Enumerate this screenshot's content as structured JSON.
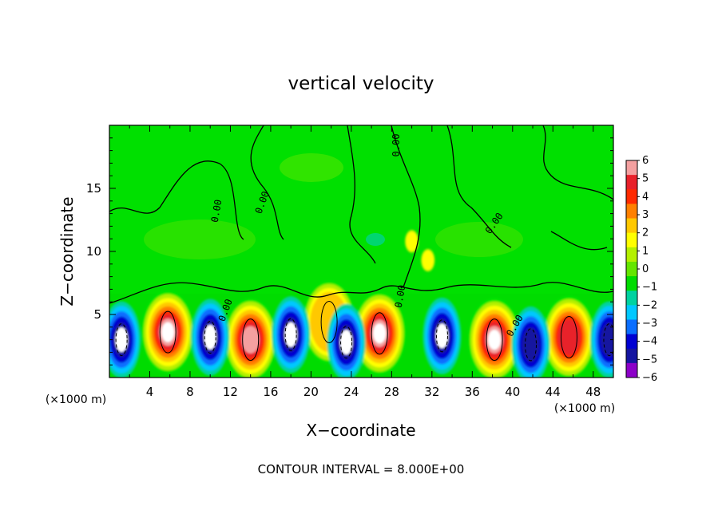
{
  "chart_data": {
    "type": "heatmap",
    "title": "vertical velocity",
    "xlabel": "X−coordinate",
    "ylabel": "Z−coordinate",
    "x_unit": "(×1000 m)",
    "xlim": [
      0,
      50
    ],
    "ylim": [
      0,
      20
    ],
    "x_ticks": [
      "4",
      "8",
      "12",
      "16",
      "20",
      "24",
      "28",
      "32",
      "36",
      "40",
      "44",
      "48"
    ],
    "y_ticks": [
      "5",
      "10",
      "15"
    ],
    "footnote": "CONTOUR INTERVAL = 8.000E+00",
    "contour_label": "0.00",
    "colorbar": {
      "labels": [
        "6",
        "5",
        "4",
        "3",
        "2",
        "1",
        "0",
        "−1",
        "−2",
        "−3",
        "−4",
        "−5",
        "−6"
      ],
      "colors": [
        "#f4a0a0",
        "#e8202a",
        "#ff2a00",
        "#ff8000",
        "#ffc800",
        "#ffff00",
        "#b4f000",
        "#64e600",
        "#00dc00",
        "#00d2a0",
        "#00c8ff",
        "#0a6eff",
        "#0000d2",
        "#1414a0",
        "#8c00c8"
      ],
      "range": [
        -6,
        6
      ]
    },
    "updraft_cells": [
      {
        "x": 5.8,
        "z": 3.6,
        "w": 9
      },
      {
        "x": 14.0,
        "z": 3.0,
        "w": 8
      },
      {
        "x": 21.8,
        "z": 4.4,
        "w": 4
      },
      {
        "x": 26.8,
        "z": 3.5,
        "w": 10
      },
      {
        "x": 38.2,
        "z": 3.0,
        "w": 9
      },
      {
        "x": 45.6,
        "z": 3.2,
        "w": 7
      },
      {
        "x": 30.0,
        "z": 10.8,
        "w": 3
      },
      {
        "x": 31.6,
        "z": 9.3,
        "w": 3
      }
    ],
    "downdraft_cells": [
      {
        "x": 1.2,
        "z": 3.0,
        "w": -7
      },
      {
        "x": 10.0,
        "z": 3.2,
        "w": -7
      },
      {
        "x": 18.0,
        "z": 3.4,
        "w": -6
      },
      {
        "x": 23.5,
        "z": 2.8,
        "w": -6
      },
      {
        "x": 33.0,
        "z": 3.3,
        "w": -7
      },
      {
        "x": 41.8,
        "z": 2.6,
        "w": -5
      },
      {
        "x": 49.6,
        "z": 3.0,
        "w": -5
      }
    ]
  }
}
